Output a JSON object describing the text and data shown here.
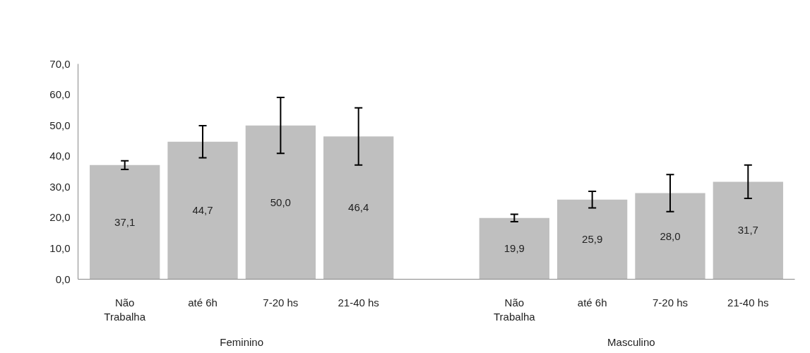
{
  "chart_data": {
    "type": "bar",
    "categories": [
      "Não Trabalha",
      "até 6h",
      "7-20 hs",
      "21-40 hs",
      null,
      "Não Trabalha",
      "até 6h",
      "7-20 hs",
      "21-40 hs"
    ],
    "values": [
      37.1,
      44.7,
      50.0,
      46.4,
      null,
      19.9,
      25.9,
      28.0,
      31.7
    ],
    "value_labels": [
      "37,1",
      "44,7",
      "50,0",
      "46,4",
      null,
      "19,9",
      "25,9",
      "28,0",
      "31,7"
    ],
    "errors": [
      1.4,
      5.2,
      9.1,
      9.3,
      null,
      1.2,
      2.7,
      6.0,
      5.4
    ],
    "color": "#bfbfbf",
    "annotations": [
      "Feminino",
      "Masculino"
    ],
    "ylim": [
      0,
      70
    ],
    "yticks": [
      {
        "value": 0,
        "label": "0,0"
      },
      {
        "value": 10,
        "label": "10,0"
      },
      {
        "value": 20,
        "label": "20,0"
      },
      {
        "value": 30,
        "label": "30,0"
      },
      {
        "value": 40,
        "label": "40,0"
      },
      {
        "value": 50,
        "label": "50,0"
      },
      {
        "value": 60,
        "label": "60,0"
      },
      {
        "value": 70,
        "label": "70,0"
      }
    ],
    "grid": false
  }
}
